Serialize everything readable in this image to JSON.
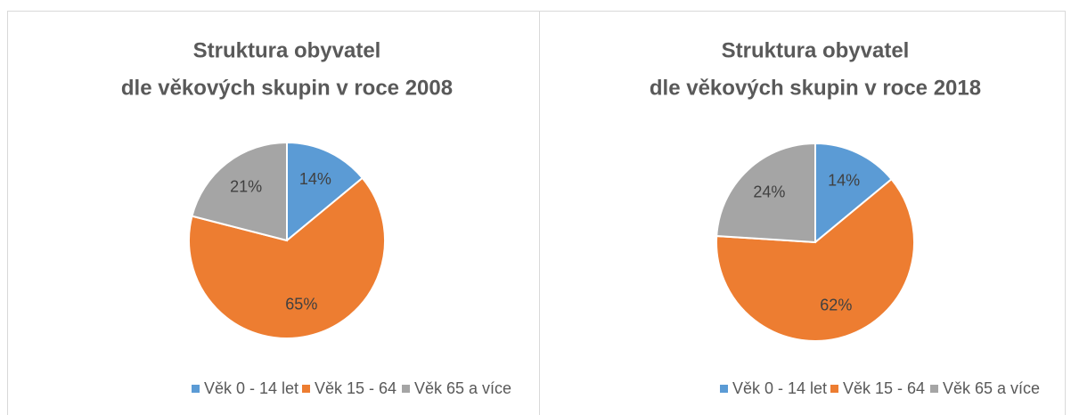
{
  "chart_data": [
    {
      "type": "pie",
      "title": [
        "Struktura obyvatel",
        "dle věkových skupin v roce 2008"
      ],
      "categories": [
        "Věk 0 - 14 let",
        "Věk 15 - 64",
        "Věk 65 a více"
      ],
      "values": [
        14,
        65,
        21
      ],
      "value_labels": [
        "14%",
        "65%",
        "21%"
      ],
      "colors": [
        "#5b9bd5",
        "#ed7d31",
        "#a5a5a5"
      ],
      "legend": "bottom"
    },
    {
      "type": "pie",
      "title": [
        "Struktura obyvatel",
        "dle věkových skupin v roce 2018"
      ],
      "categories": [
        "Věk 0 - 14 let",
        "Věk 15 - 64",
        "Věk 65 a více"
      ],
      "values": [
        14,
        62,
        24
      ],
      "value_labels": [
        "14%",
        "62%",
        "24%"
      ],
      "colors": [
        "#5b9bd5",
        "#ed7d31",
        "#a5a5a5"
      ],
      "legend": "bottom"
    }
  ]
}
